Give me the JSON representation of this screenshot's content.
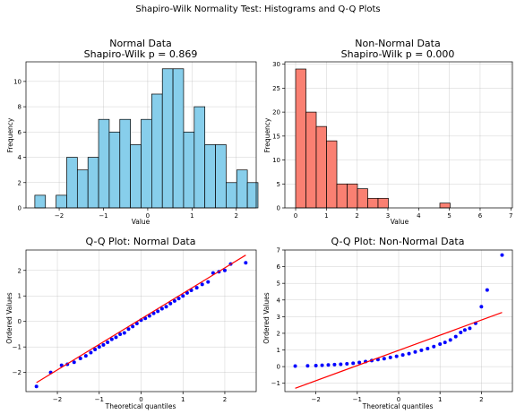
{
  "figure": {
    "title": "Shapiro-Wilk Normality Test: Histograms and Q-Q Plots"
  },
  "chart_data": [
    {
      "type": "histogram",
      "title_line1": "Normal Data",
      "title_line2": "Shapiro-Wilk p = 0.869",
      "xlabel": "Value",
      "ylabel": "Frequency",
      "xlim": [
        -2.75,
        2.45
      ],
      "ylim": [
        0,
        11.55
      ],
      "xticks": [
        -2,
        -1,
        0,
        1,
        2
      ],
      "yticks": [
        0,
        2,
        4,
        6,
        8,
        10
      ],
      "bar_color": "#87ceeb",
      "bin_start": -2.55,
      "bin_width": 0.24,
      "counts": [
        1,
        0,
        1,
        4,
        3,
        4,
        7,
        6,
        7,
        5,
        7,
        9,
        11,
        11,
        6,
        8,
        5,
        5,
        2,
        3,
        2
      ],
      "grid": true
    },
    {
      "type": "histogram",
      "title_line1": "Non-Normal Data",
      "title_line2": "Shapiro-Wilk p = 0.000",
      "xlabel": "Value",
      "ylabel": "Frequency",
      "xlim": [
        -0.35,
        7.05
      ],
      "ylim": [
        0,
        30.5
      ],
      "xticks": [
        0,
        1,
        2,
        3,
        4,
        5,
        6,
        7
      ],
      "yticks": [
        0,
        5,
        10,
        15,
        20,
        25,
        30
      ],
      "bar_color": "#fa8072",
      "bin_start": 0.0,
      "bin_width": 0.335,
      "counts": [
        29,
        20,
        17,
        14,
        5,
        5,
        4,
        2,
        2,
        0,
        0,
        0,
        0,
        0,
        1,
        0,
        0,
        0,
        0,
        0
      ],
      "grid": true
    },
    {
      "type": "scatter",
      "title": "Q-Q Plot: Normal Data",
      "xlabel": "Theoretical quantiles",
      "ylabel": "Ordered Values",
      "xlim": [
        -2.75,
        2.75
      ],
      "ylim": [
        -2.75,
        2.8
      ],
      "xticks": [
        -2,
        -1,
        0,
        1,
        2
      ],
      "yticks": [
        -2,
        -1,
        0,
        1,
        2
      ],
      "point_color": "#0000ff",
      "line_color": "#ff0000",
      "fit_line": {
        "x": [
          -2.5,
          2.5
        ],
        "y": [
          -2.4,
          2.6
        ]
      },
      "points_x": [
        -2.5,
        -2.16,
        -1.9,
        -1.76,
        -1.6,
        -1.45,
        -1.32,
        -1.2,
        -1.1,
        -1.0,
        -0.9,
        -0.8,
        -0.7,
        -0.6,
        -0.5,
        -0.4,
        -0.3,
        -0.2,
        -0.1,
        0.0,
        0.1,
        0.2,
        0.3,
        0.4,
        0.5,
        0.6,
        0.7,
        0.8,
        0.9,
        1.0,
        1.1,
        1.2,
        1.33,
        1.46,
        1.6,
        1.72,
        1.86,
        2.0,
        2.14,
        2.5
      ],
      "points_y": [
        -2.55,
        -2.0,
        -1.72,
        -1.68,
        -1.6,
        -1.45,
        -1.35,
        -1.22,
        -1.1,
        -1.0,
        -0.92,
        -0.82,
        -0.7,
        -0.62,
        -0.5,
        -0.45,
        -0.3,
        -0.2,
        -0.08,
        0.05,
        0.12,
        0.22,
        0.32,
        0.4,
        0.5,
        0.58,
        0.7,
        0.8,
        0.9,
        1.0,
        1.12,
        1.22,
        1.32,
        1.45,
        1.55,
        1.9,
        1.95,
        2.0,
        2.25,
        2.3
      ],
      "grid": true
    },
    {
      "type": "scatter",
      "title": "Q-Q Plot: Non-Normal Data",
      "xlabel": "Theoretical quantiles",
      "ylabel": "Ordered Values",
      "xlim": [
        -2.75,
        2.75
      ],
      "ylim": [
        -1.5,
        7.0
      ],
      "xticks": [
        -2,
        -1,
        0,
        1,
        2
      ],
      "yticks": [
        -1,
        0,
        1,
        2,
        3,
        4,
        5,
        6,
        7
      ],
      "point_color": "#0000ff",
      "line_color": "#ff0000",
      "fit_line": {
        "x": [
          -2.5,
          2.5
        ],
        "y": [
          -1.3,
          3.25
        ]
      },
      "points_x": [
        -2.5,
        -2.2,
        -2.0,
        -1.85,
        -1.7,
        -1.55,
        -1.4,
        -1.25,
        -1.1,
        -0.95,
        -0.8,
        -0.65,
        -0.5,
        -0.35,
        -0.2,
        -0.05,
        0.1,
        0.25,
        0.4,
        0.55,
        0.7,
        0.85,
        1.0,
        1.12,
        1.25,
        1.38,
        1.5,
        1.6,
        1.72,
        1.86,
        2.0,
        2.14,
        2.5
      ],
      "points_y": [
        0.03,
        0.05,
        0.06,
        0.08,
        0.1,
        0.12,
        0.14,
        0.17,
        0.2,
        0.25,
        0.3,
        0.36,
        0.42,
        0.48,
        0.55,
        0.62,
        0.7,
        0.78,
        0.88,
        0.98,
        1.08,
        1.2,
        1.35,
        1.45,
        1.6,
        1.8,
        2.05,
        2.2,
        2.3,
        2.6,
        3.6,
        4.6,
        6.7
      ],
      "grid": true
    }
  ]
}
